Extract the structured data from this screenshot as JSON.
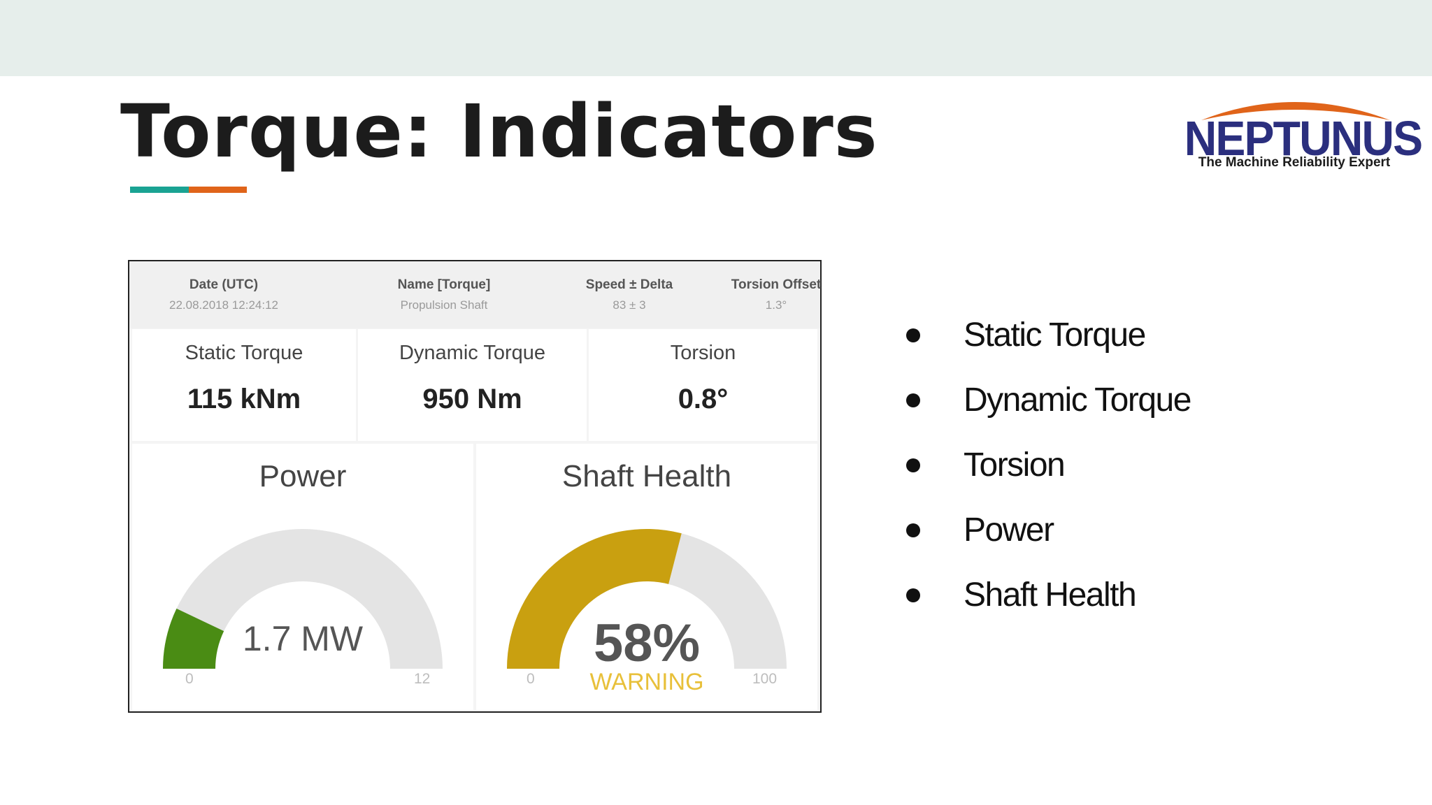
{
  "slide": {
    "title": "Torque:  Indicators",
    "accent_colors": [
      "#1aa393",
      "#e0641a"
    ]
  },
  "logo": {
    "wordmark": "NEPTUNUS",
    "tagline": "The Machine Reliability Expert",
    "arc_color": "#e0641a",
    "text_color": "#2b2f7e"
  },
  "dashboard": {
    "header": [
      {
        "label": "Date (UTC)",
        "value": "22.08.2018 12:24:12"
      },
      {
        "label": "Name [Torque]",
        "value": "Propulsion Shaft"
      },
      {
        "label": "Speed ± Delta",
        "value": "83 ± 3"
      },
      {
        "label": "Torsion Offset",
        "value": "1.3°"
      }
    ],
    "metrics": [
      {
        "label": "Static Torque",
        "value": "115 kNm"
      },
      {
        "label": "Dynamic Torque",
        "value": "950 Nm"
      },
      {
        "label": "Torsion",
        "value": "0.8°"
      }
    ],
    "gauges": [
      {
        "title": "Power",
        "value": 1.7,
        "display": "1.7 MW",
        "min": 0,
        "max": 12,
        "min_label": "0",
        "max_label": "12",
        "color": "#4a8c14",
        "status": ""
      },
      {
        "title": "Shaft Health",
        "value": 58,
        "display": "58%",
        "min": 0,
        "max": 100,
        "min_label": "0",
        "max_label": "100",
        "color": "#c9a010",
        "status": "WARNING",
        "status_color": "#e8c03a"
      }
    ]
  },
  "bullets": [
    "Static Torque",
    "Dynamic Torque",
    "Torsion",
    "Power",
    "Shaft Health"
  ]
}
